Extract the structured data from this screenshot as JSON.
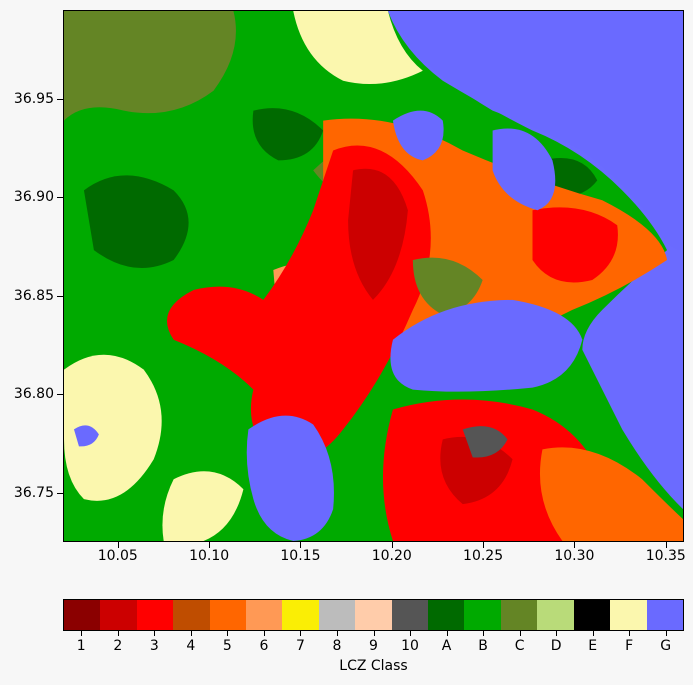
{
  "map": {
    "x_ticks": [
      "10.05",
      "10.10",
      "10.15",
      "10.20",
      "10.25",
      "10.30",
      "10.35"
    ],
    "y_ticks": [
      "36.95",
      "36.90",
      "36.85",
      "36.80",
      "36.75"
    ],
    "x_tick_values": [
      10.05,
      10.1,
      10.15,
      10.2,
      10.25,
      10.3,
      10.35
    ],
    "y_tick_values": [
      36.95,
      36.9,
      36.85,
      36.8,
      36.75
    ],
    "lon_range": [
      10.02,
      10.36
    ],
    "lat_range": [
      36.725,
      36.995
    ]
  },
  "colorbar": {
    "title": "LCZ Class",
    "classes": [
      {
        "label": "1",
        "color": "#8b0000"
      },
      {
        "label": "2",
        "color": "#cc0000"
      },
      {
        "label": "3",
        "color": "#ff0000"
      },
      {
        "label": "4",
        "color": "#bf4d00"
      },
      {
        "label": "5",
        "color": "#ff6600"
      },
      {
        "label": "6",
        "color": "#ff9955"
      },
      {
        "label": "7",
        "color": "#faee05"
      },
      {
        "label": "8",
        "color": "#bcbcbc"
      },
      {
        "label": "9",
        "color": "#ffccaa"
      },
      {
        "label": "10",
        "color": "#555555"
      },
      {
        "label": "A",
        "color": "#006a00"
      },
      {
        "label": "B",
        "color": "#00aa00"
      },
      {
        "label": "C",
        "color": "#648525"
      },
      {
        "label": "D",
        "color": "#b9db79"
      },
      {
        "label": "E",
        "color": "#000000"
      },
      {
        "label": "F",
        "color": "#fbf7ae"
      },
      {
        "label": "G",
        "color": "#6a6aff"
      }
    ]
  }
}
